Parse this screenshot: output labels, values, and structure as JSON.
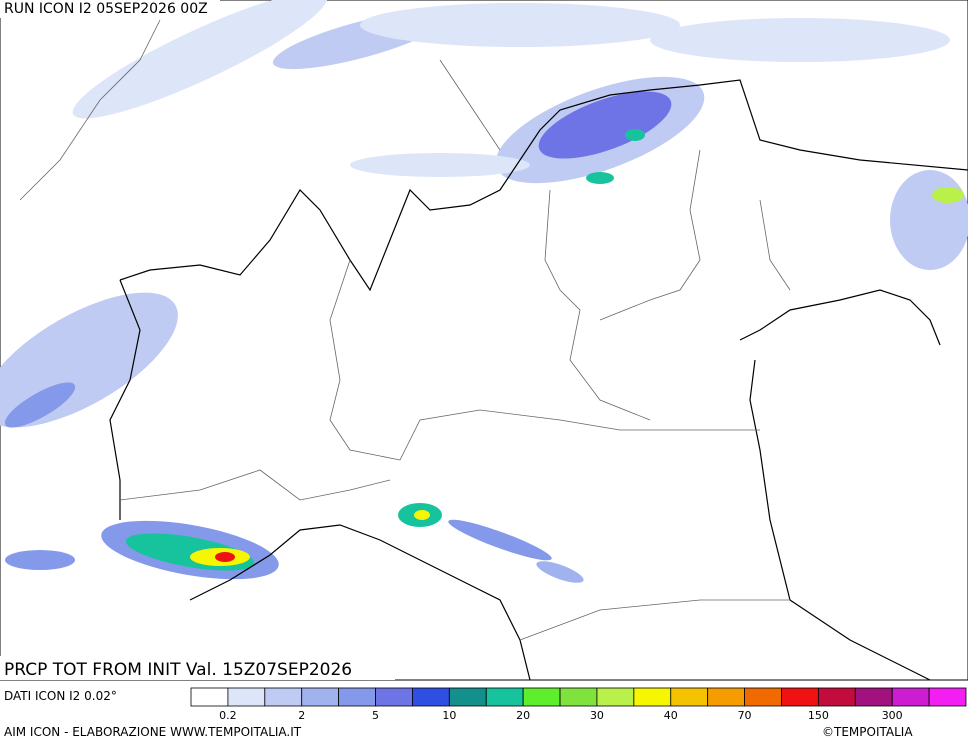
{
  "header": "RUN ICON I2 05SEP2026 00Z",
  "title": "PRCP TOT FROM INIT Val. 15Z07SEP2026",
  "resolution": "DATI ICON I2 0.02°",
  "credit": "AIM ICON - ELABORAZIONE WWW.TEMPOITALIA.IT",
  "copyright": "©TEMPOITALIA",
  "legend": {
    "colors": [
      "#ffffff",
      "#dde5f9",
      "#bfcbf3",
      "#a0b3ef",
      "#8599ea",
      "#6e74e6",
      "#2e4fe2",
      "#138f8c",
      "#17c39c",
      "#5fee2c",
      "#80e23c",
      "#b9f04a",
      "#f6f600",
      "#f5c200",
      "#f59c00",
      "#f06a00",
      "#ee1212",
      "#c20c3e",
      "#a1127e",
      "#cc1ed0",
      "#f21ef2"
    ],
    "labels": [
      "0.2",
      "2",
      "5",
      "10",
      "20",
      "30",
      "40",
      "70",
      "150",
      "300"
    ]
  }
}
